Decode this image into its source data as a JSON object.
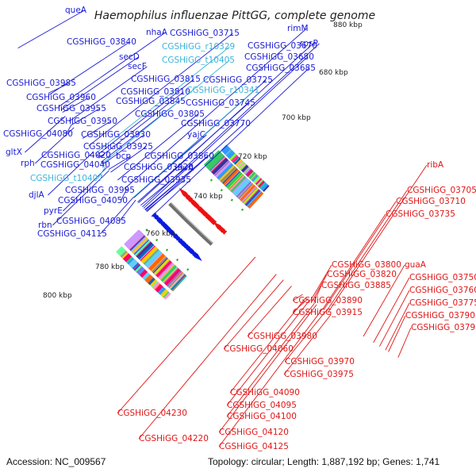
{
  "title": "Haemophilus influenzae PittGG, complete genome",
  "footer": {
    "accession": "Accession: NC_009567",
    "summary": "Topology: circular; Length: 1,887,192 bp; Genes: 1,741"
  },
  "colors": {
    "forward_label": "#1a1ad6",
    "rna_label": "#3cb4d8",
    "reverse_label": "#e01515",
    "backbone": "#777777"
  },
  "ticks": [
    "680 kbp",
    "700 kbp",
    "720 kbp",
    "740 kbp",
    "760 kbp",
    "780 kbp",
    "800 kbp",
    "880 kbp"
  ],
  "labels_forward": [
    {
      "text": "queA"
    },
    {
      "text": "CGSHiGG_03840"
    },
    {
      "text": "secD"
    },
    {
      "text": "secF"
    },
    {
      "text": "nhaA"
    },
    {
      "text": "CGSHiGG_03715"
    },
    {
      "text": "CGSHiGG_03670"
    },
    {
      "text": "CGSHiGG_03680"
    },
    {
      "text": "CGSHiGG_03685"
    },
    {
      "text": "rimM"
    },
    {
      "text": "rpsP"
    },
    {
      "text": "CGSHiGG_03985"
    },
    {
      "text": "CGSHiGG_03960"
    },
    {
      "text": "CGSHiGG_03955"
    },
    {
      "text": "CGSHiGG_03950"
    },
    {
      "text": "CGSHiGG_04080"
    },
    {
      "text": "CGSHiGG_03930"
    },
    {
      "text": "CGSHiGG_03925"
    },
    {
      "text": "CGSHiGG_03815"
    },
    {
      "text": "CGSHiGG_03810"
    },
    {
      "text": "CGSHiGG_03845"
    },
    {
      "text": "CGSHiGG_03805"
    },
    {
      "text": "CGSHiGG_03725"
    },
    {
      "text": "CGSHiGG_03745"
    },
    {
      "text": "CGSHiGG_03770"
    },
    {
      "text": "yajC"
    },
    {
      "text": "gltX"
    },
    {
      "text": "rph"
    },
    {
      "text": "CGSHiGG_04020"
    },
    {
      "text": "CGSHiGG_04040"
    },
    {
      "text": "bcp"
    },
    {
      "text": "CGSHiGG_03920"
    },
    {
      "text": "CGSHiGG_03860"
    },
    {
      "text": "uvrA"
    },
    {
      "text": "CGSHiGG_03935"
    },
    {
      "text": "CGSHiGG_03995"
    },
    {
      "text": "djlA"
    },
    {
      "text": "CGSHiGG_04050"
    },
    {
      "text": "pyrE"
    },
    {
      "text": "rbn"
    },
    {
      "text": "CGSHiGG_04085"
    },
    {
      "text": "CGSHiGG_04115"
    }
  ],
  "labels_rna": [
    {
      "text": "CGSHiGG_r10329"
    },
    {
      "text": "CGSHiGG_t10405"
    },
    {
      "text": "CGSHiGG_r10341"
    },
    {
      "text": "CGSHiGG_t10407"
    }
  ],
  "labels_reverse": [
    {
      "text": "ribA"
    },
    {
      "text": "CGSHiGG_03705"
    },
    {
      "text": "CGSHiGG_03710"
    },
    {
      "text": "CGSHiGG_03735"
    },
    {
      "text": "guaA"
    },
    {
      "text": "CGSHiGG_03800"
    },
    {
      "text": "CGSHiGG_03820"
    },
    {
      "text": "CGSHiGG_03885"
    },
    {
      "text": "CGSHiGG_03750"
    },
    {
      "text": "CGSHiGG_03760"
    },
    {
      "text": "CGSHiGG_03775"
    },
    {
      "text": "CGSHiGG_03790"
    },
    {
      "text": "CGSHiGG_03795"
    },
    {
      "text": "CGSHiGG_03890"
    },
    {
      "text": "CGSHiGG_03915"
    },
    {
      "text": "CGSHiGG_03980"
    },
    {
      "text": "CGSHiGG_04060"
    },
    {
      "text": "CGSHiGG_03970"
    },
    {
      "text": "CGSHiGG_03975"
    },
    {
      "text": "CGSHiGG_04090"
    },
    {
      "text": "CGSHiGG_04095"
    },
    {
      "text": "CGSHiGG_04100"
    },
    {
      "text": "CGSHiGG_04120"
    },
    {
      "text": "CGSHiGG_04125"
    },
    {
      "text": "CGSHiGG_04230"
    },
    {
      "text": "CGSHiGG_04220"
    }
  ]
}
